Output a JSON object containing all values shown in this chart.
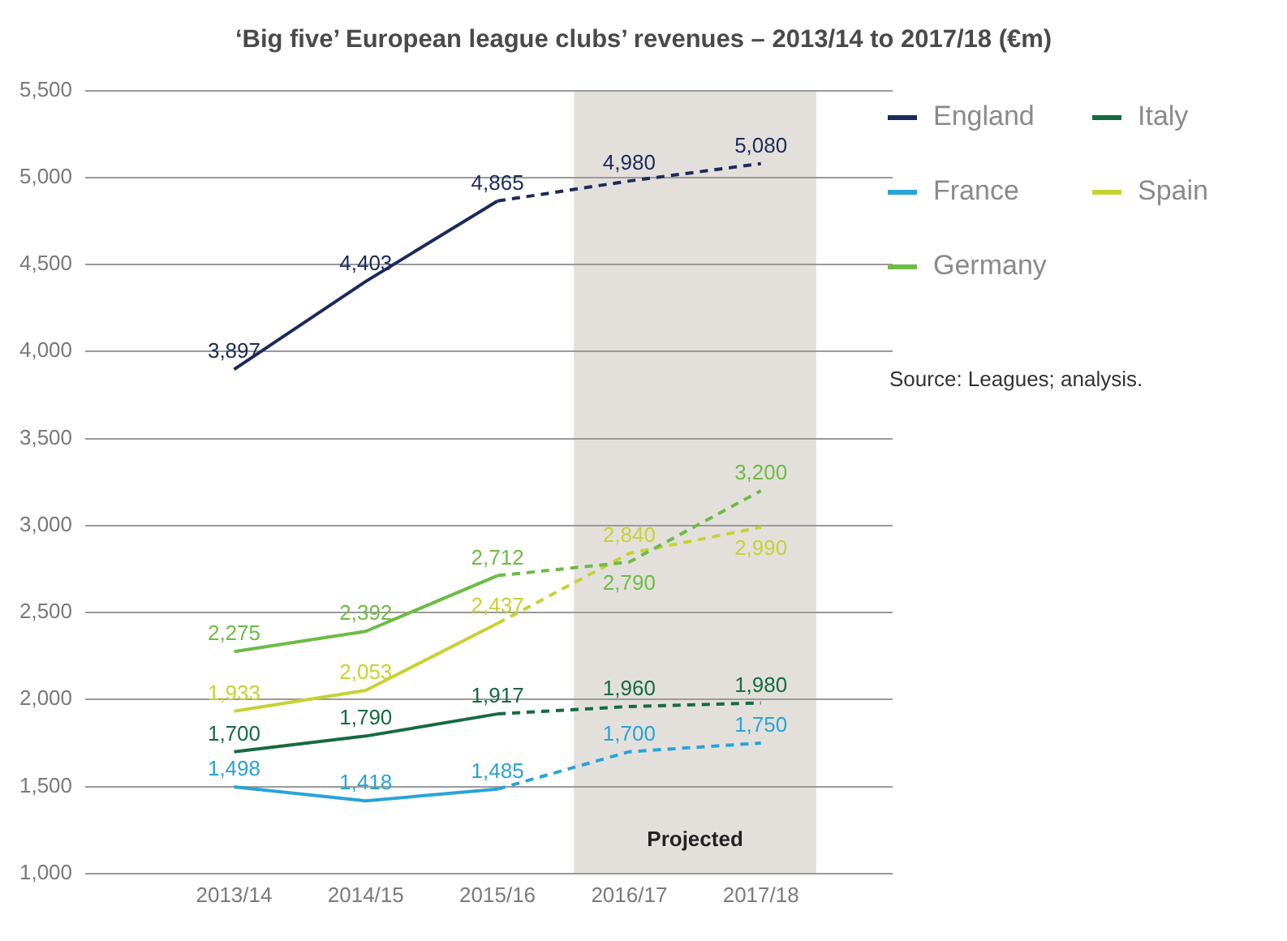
{
  "chart_data": {
    "type": "line",
    "title": "‘Big five’ European league clubs’ revenues – 2013/14 to 2017/18 (€m)",
    "categories": [
      "2013/14",
      "2014/15",
      "2015/16",
      "2016/17",
      "2017/18"
    ],
    "series": [
      {
        "name": "England",
        "color": "#1c2a5a",
        "values": [
          3897,
          4403,
          4865,
          null,
          null
        ],
        "value_labels": [
          "3,897",
          "4,403",
          "4,865",
          null,
          null
        ]
      },
      {
        "color": "#1c2a5a",
        "line_style": "dashed",
        "values": [
          null,
          null,
          4865,
          4980,
          5080
        ],
        "value_labels": [
          null,
          null,
          null,
          "4,980",
          "5,080"
        ]
      },
      {
        "name": "France",
        "color": "#29a3d8",
        "values": [
          1498,
          1418,
          1485,
          null,
          null
        ],
        "value_labels": [
          "1,498",
          "1,418",
          "1,485",
          null,
          null
        ]
      },
      {
        "color": "#29a3d8",
        "line_style": "dashed",
        "values": [
          null,
          null,
          1485,
          1700,
          1750
        ],
        "value_labels": [
          null,
          null,
          null,
          "1,700",
          "1,750"
        ]
      },
      {
        "name": "Germany",
        "color": "#6dbb45",
        "values": [
          2275,
          2392,
          2712,
          null,
          null
        ],
        "value_labels": [
          "2,275",
          "2,392",
          "2,712",
          null,
          null
        ]
      },
      {
        "color": "#6dbb45",
        "line_style": "dashed",
        "values": [
          null,
          null,
          2712,
          2790,
          3200
        ],
        "value_labels": [
          null,
          null,
          null,
          "2,790",
          "3,200"
        ]
      },
      {
        "name": "Italy",
        "color": "#156b40",
        "values": [
          1700,
          1790,
          1917,
          null,
          null
        ],
        "value_labels": [
          "1,700",
          "1,790",
          "1,917",
          null,
          null
        ]
      },
      {
        "color": "#156b40",
        "line_style": "dashed",
        "values": [
          null,
          null,
          1917,
          1960,
          1980
        ],
        "value_labels": [
          null,
          null,
          null,
          "1,960",
          "1,980"
        ]
      },
      {
        "name": "Spain",
        "color": "#c6d232",
        "values": [
          1933,
          2053,
          2437,
          null,
          null
        ],
        "value_labels": [
          "1,933",
          "2,053",
          "2,437",
          null,
          null
        ]
      },
      {
        "color": "#c6d232",
        "line_style": "dashed",
        "values": [
          null,
          null,
          2437,
          2840,
          2990
        ],
        "value_labels": [
          null,
          null,
          null,
          "2,840",
          "2,990"
        ]
      }
    ],
    "ylim": [
      1000,
      5500
    ],
    "yticks": [
      {
        "value": 1000,
        "label": "1,000"
      },
      {
        "value": 1500,
        "label": "1,500"
      },
      {
        "value": 2000,
        "label": "2,000"
      },
      {
        "value": 2500,
        "label": "2,500"
      },
      {
        "value": 3000,
        "label": "3,000"
      },
      {
        "value": 3500,
        "label": "3,500"
      },
      {
        "value": 4000,
        "label": "4,000"
      },
      {
        "value": 4500,
        "label": "4,500"
      },
      {
        "value": 5000,
        "label": "5,000"
      },
      {
        "value": 5500,
        "label": "5,500"
      }
    ],
    "grid": "y",
    "legend": "top right",
    "marker": "none",
    "line_style": "solid",
    "bands": [
      {
        "axis": "x",
        "from": "2016/17",
        "to": "2017/18",
        "label": "Projected",
        "color": "#e3e0dc"
      }
    ],
    "annotations": [
      "Source: Leagues; analysis."
    ]
  }
}
